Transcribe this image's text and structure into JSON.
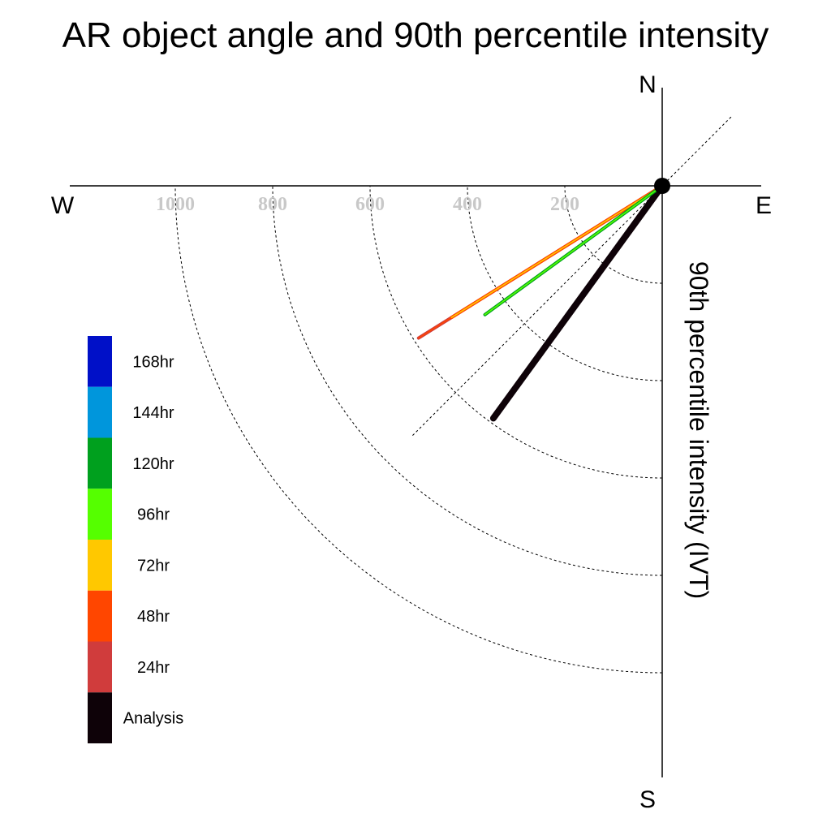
{
  "chart_data": {
    "type": "polar-vector",
    "title": "AR object angle and 90th percentile intensity",
    "compass": {
      "north": "N",
      "south": "S",
      "east": "E",
      "west": "W"
    },
    "radial_label": "90th percentile intensity (IVT)",
    "radial_ticks": [
      200,
      400,
      600,
      800,
      1000
    ],
    "radial_max": 1200,
    "grid": true,
    "legend_position": "left",
    "legend": [
      {
        "label": "168hr",
        "color": "#0010c8"
      },
      {
        "label": "144hr",
        "color": "#0096dc"
      },
      {
        "label": "120hr",
        "color": "#00a01e"
      },
      {
        "label": "96hr",
        "color": "#55ff00"
      },
      {
        "label": "72hr",
        "color": "#ffc800"
      },
      {
        "label": "48hr",
        "color": "#ff4600"
      },
      {
        "label": "24hr",
        "color": "#d03c3c"
      },
      {
        "label": "Analysis",
        "color": "#0e0208"
      }
    ],
    "series": [
      {
        "name": "Analysis",
        "angle_deg_from_north": 216,
        "value": 590,
        "color": "#0e0208"
      },
      {
        "name": "48hr",
        "angle_deg_from_north": 238,
        "value": 590,
        "color": "#d03c3c",
        "accent": "#ff4600"
      },
      {
        "name": "72hr",
        "angle_deg_from_north": 238,
        "value": 510,
        "color": "#ff4600",
        "accent": "#ffc800"
      },
      {
        "name": "120hr",
        "angle_deg_from_north": 234,
        "value": 450,
        "color": "#00a01e",
        "accent": "#55ff00"
      }
    ]
  }
}
